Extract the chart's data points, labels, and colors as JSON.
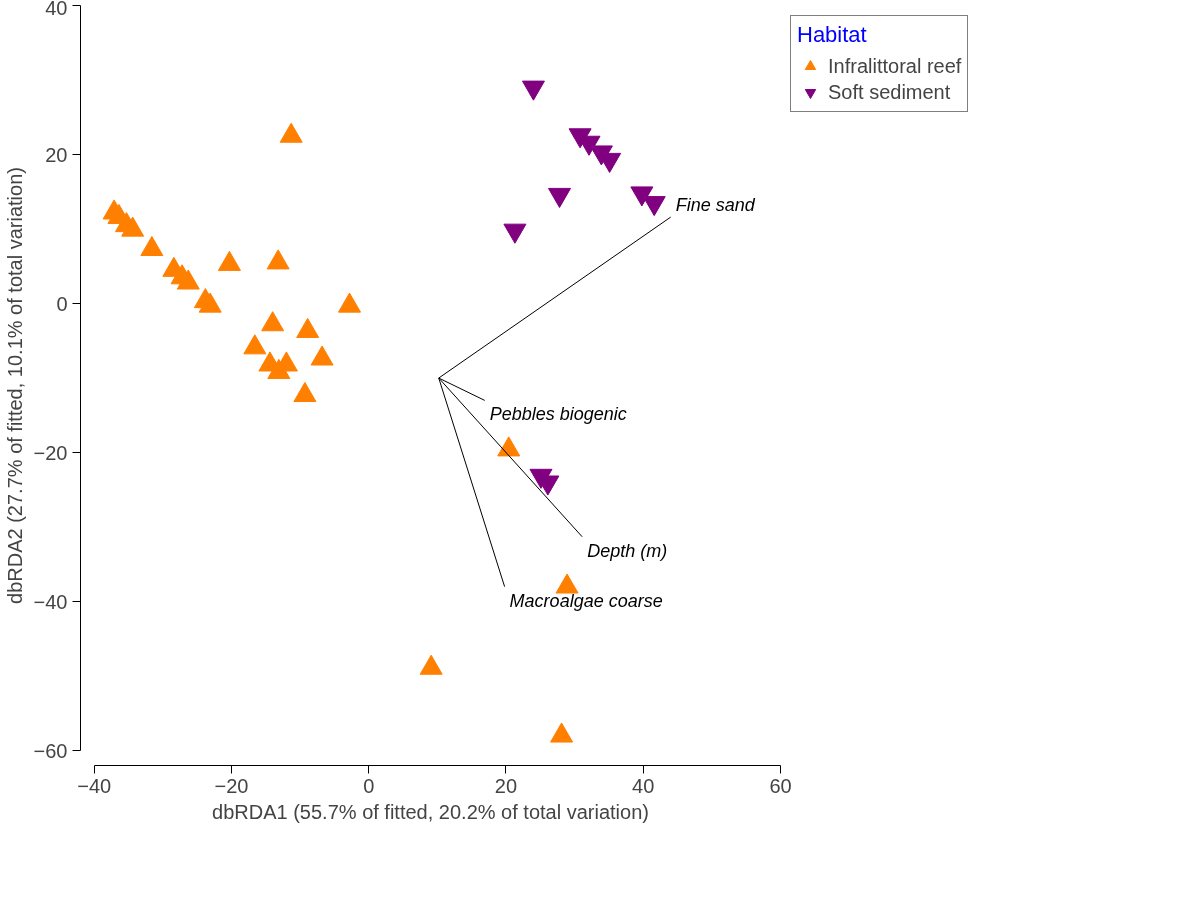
{
  "chart_data": {
    "type": "scatter",
    "xlabel": "dbRDA1 (55.7% of fitted, 20.2% of total variation)",
    "ylabel": "dbRDA2 (27.7% of fitted, 10.1% of total variation)",
    "legend_title": "Habitat",
    "legend": "top right",
    "grid": false,
    "xlim": [
      -42,
      60
    ],
    "ylim": [
      -62,
      40
    ],
    "xticks": [
      -40,
      -20,
      0,
      20,
      40,
      60
    ],
    "yticks": [
      -60,
      -40,
      -20,
      0,
      20,
      40
    ],
    "series": [
      {
        "name": "Infralittoral reef",
        "marker": "triangle",
        "color": "#ff8000",
        "x": [
          -11.3,
          -37.1,
          -36.4,
          -35.3,
          -34.4,
          -31.6,
          -28.4,
          -27.2,
          -26.3,
          -23.8,
          -23.1,
          -20.3,
          -13.2,
          -2.8,
          -14.0,
          -8.9,
          -16.6,
          -14.4,
          -12.0,
          -13.1,
          -6.8,
          -9.3,
          20.4,
          28.9,
          9.1,
          28.1
        ],
        "values": [
          22.5,
          12.2,
          11.6,
          10.5,
          9.9,
          7.3,
          4.5,
          3.5,
          2.8,
          0.3,
          -0.3,
          5.3,
          5.5,
          -0.3,
          -2.8,
          -3.7,
          -5.9,
          -8.2,
          -8.2,
          -9.2,
          -7.4,
          -12.3,
          -19.6,
          -38.0,
          -48.9,
          -58.0
        ]
      },
      {
        "name": "Soft sediment",
        "color": "#800080",
        "x": [
          24.0,
          30.8,
          32.1,
          33.9,
          35.1,
          27.8,
          39.8,
          41.6,
          21.3,
          25.1,
          26.1
        ],
        "values": [
          29.0,
          22.6,
          21.6,
          20.3,
          19.3,
          14.6,
          14.8,
          13.5,
          9.8,
          -23.1,
          -24.0
        ]
      },
      {
        "name": "Fine sand",
        "type": "line",
        "color": "#000000",
        "x": [
          10.2,
          44.0
        ],
        "values": [
          -10.0,
          11.6
        ]
      },
      {
        "name": "Pebbles biogenic",
        "type": "line",
        "color": "#000000",
        "x": [
          10.2,
          16.9
        ],
        "values": [
          -10.0,
          -13.0
        ]
      },
      {
        "name": "Depth (m)",
        "type": "line",
        "color": "#000000",
        "x": [
          10.2,
          31.1
        ],
        "values": [
          -10.0,
          -31.3
        ]
      },
      {
        "name": "Macroalgae coarse",
        "type": "line",
        "color": "#000000",
        "x": [
          10.2,
          19.8
        ],
        "values": [
          -10.0,
          -38.0
        ]
      }
    ]
  }
}
